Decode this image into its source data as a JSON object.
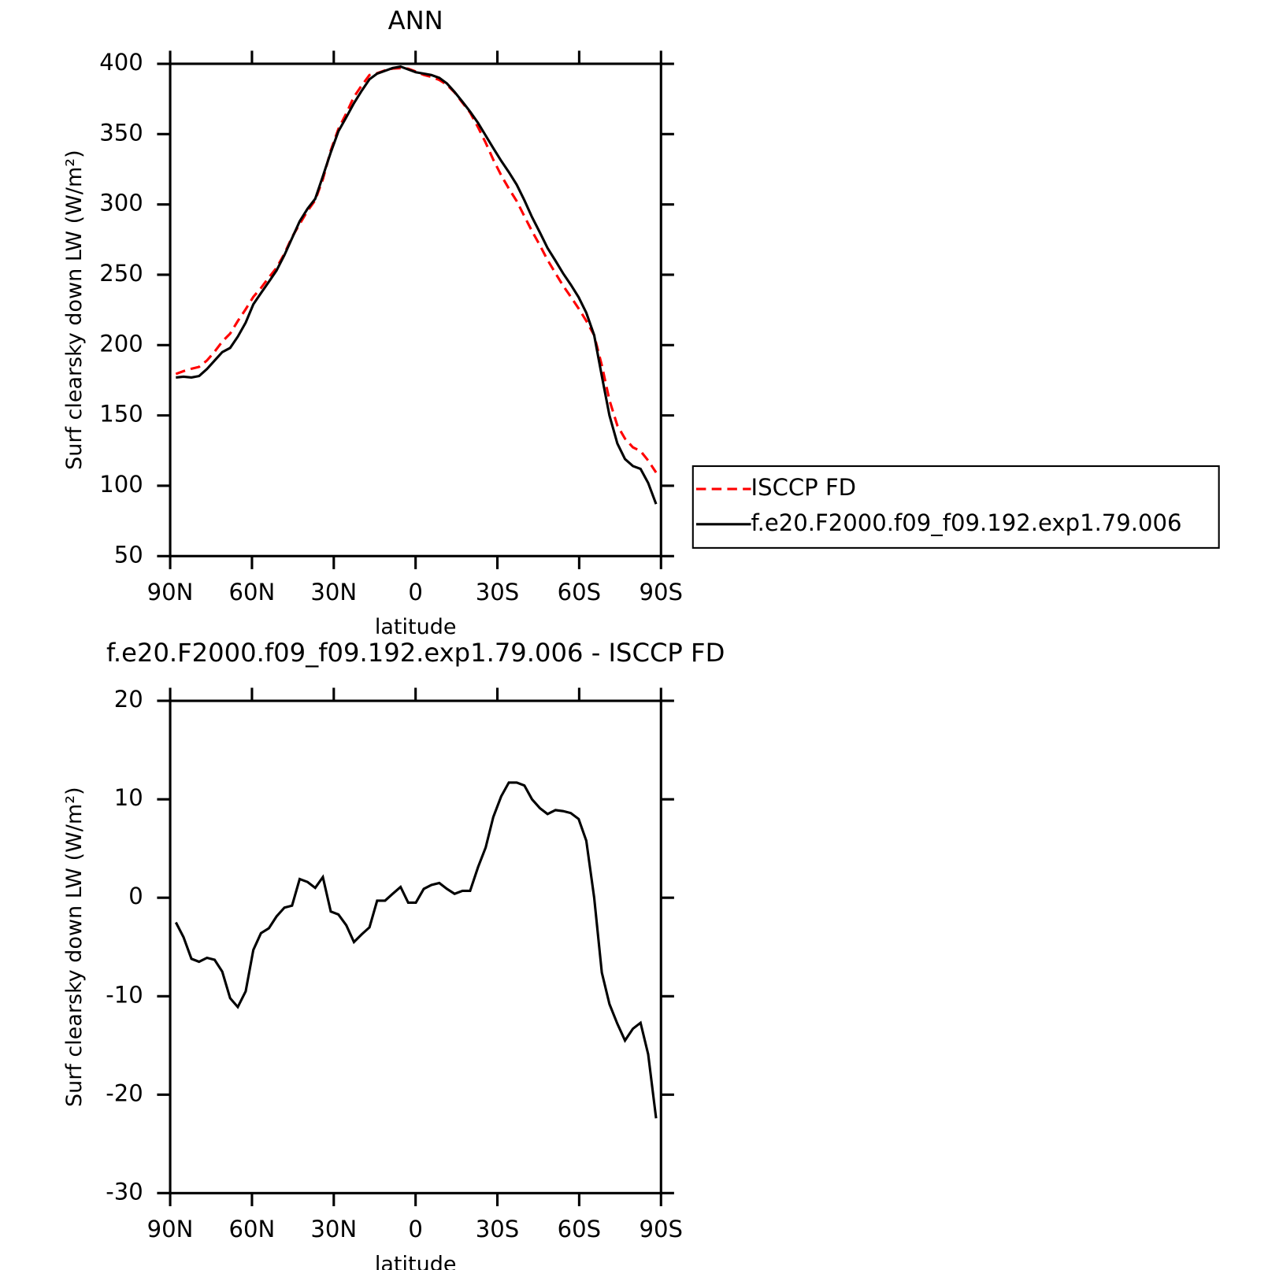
{
  "chart_data": [
    {
      "type": "line",
      "title": "ANN",
      "xlabel": "latitude",
      "ylabel": "Surf clearsky down LW (W/m²)",
      "x": [
        87.9,
        85.1,
        82.2,
        79.4,
        76.5,
        73.7,
        70.9,
        68.0,
        65.2,
        62.3,
        59.5,
        56.7,
        53.8,
        51.0,
        48.1,
        45.3,
        42.5,
        39.6,
        36.8,
        34.0,
        31.1,
        28.3,
        25.4,
        22.6,
        19.7,
        16.9,
        14.1,
        11.2,
        8.4,
        5.5,
        2.7,
        -0.1,
        -3.0,
        -5.8,
        -8.7,
        -11.5,
        -14.3,
        -17.2,
        -20.0,
        -22.9,
        -25.7,
        -28.5,
        -31.4,
        -34.2,
        -37.1,
        -39.9,
        -42.7,
        -45.6,
        -48.4,
        -51.3,
        -54.1,
        -56.9,
        -59.8,
        -62.6,
        -65.5,
        -68.3,
        -71.1,
        -74.0,
        -76.8,
        -79.7,
        -82.5,
        -85.3,
        -88.2
      ],
      "series": [
        {
          "name": "ISCCP FD",
          "color": "#ff0000",
          "line_style": "dashed",
          "values": [
            179.5,
            181.5,
            183.2,
            184.5,
            189.1,
            195.3,
            202.5,
            208.2,
            217.1,
            225.5,
            234.3,
            240.6,
            248.1,
            254.9,
            265,
            276.8,
            286.1,
            295.4,
            303,
            317.9,
            338.4,
            353.7,
            364.8,
            376.5,
            384.7,
            392,
            393.3,
            395.3,
            396.6,
            396.9,
            396.5,
            394.5,
            392.1,
            390.7,
            388.5,
            385.1,
            379.6,
            372.3,
            365.3,
            354.9,
            343.9,
            331.8,
            320.7,
            311.3,
            302.3,
            291.6,
            281,
            270.9,
            260.5,
            251.1,
            242.2,
            234.4,
            226,
            217.2,
            207,
            185.6,
            160.8,
            142.8,
            133.5,
            127.3,
            124.7,
            117.9,
            109.4
          ]
        },
        {
          "name": "f.e20.F2000.f09_f09.192.exp1.79.006",
          "color": "#000000",
          "line_style": "solid",
          "values": [
            177,
            177.5,
            177,
            178,
            183,
            189,
            195,
            198,
            206,
            216,
            229,
            237,
            245,
            253,
            264,
            276,
            288,
            297,
            304,
            320,
            337,
            352,
            362,
            372,
            381,
            389,
            393,
            395,
            397,
            398,
            396,
            394,
            393,
            392,
            390,
            386,
            380,
            373,
            366,
            358,
            349,
            340,
            331,
            323,
            314,
            303,
            291,
            280,
            269,
            260,
            251,
            243,
            234,
            223,
            207,
            178,
            150,
            130,
            119,
            114,
            112,
            102,
            87
          ]
        }
      ],
      "xlim": [
        90,
        -90
      ],
      "xticks": [
        {
          "value": 90,
          "label": "90N"
        },
        {
          "value": 60,
          "label": "60N"
        },
        {
          "value": 30,
          "label": "30N"
        },
        0,
        {
          "value": -30,
          "label": "30S"
        },
        {
          "value": -60,
          "label": "60S"
        },
        {
          "value": -90,
          "label": "90S"
        }
      ],
      "ylim": [
        50,
        400
      ],
      "yticks": [
        50,
        100,
        150,
        200,
        250,
        300,
        350,
        400
      ],
      "legend": "right"
    },
    {
      "type": "line",
      "title": "f.e20.F2000.f09_f09.192.exp1.79.006 - ISCCP FD",
      "xlabel": "latitude",
      "ylabel": "Surf clearsky down LW (W/m²)",
      "x": [
        87.9,
        85.1,
        82.2,
        79.4,
        76.5,
        73.7,
        70.9,
        68.0,
        65.2,
        62.3,
        59.5,
        56.7,
        53.8,
        51.0,
        48.1,
        45.3,
        42.5,
        39.6,
        36.8,
        34.0,
        31.1,
        28.3,
        25.4,
        22.6,
        19.7,
        16.9,
        14.1,
        11.2,
        8.4,
        5.5,
        2.7,
        -0.1,
        -3.0,
        -5.8,
        -8.7,
        -11.5,
        -14.3,
        -17.2,
        -20.0,
        -22.9,
        -25.7,
        -28.5,
        -31.4,
        -34.2,
        -37.1,
        -39.9,
        -42.7,
        -45.6,
        -48.4,
        -51.3,
        -54.1,
        -56.9,
        -59.8,
        -62.6,
        -65.5,
        -68.3,
        -71.1,
        -74.0,
        -76.8,
        -79.7,
        -82.5,
        -85.3,
        -88.2
      ],
      "values": [
        -2.5,
        -4,
        -6.2,
        -6.5,
        -6.1,
        -6.3,
        -7.5,
        -10.2,
        -11.1,
        -9.5,
        -5.3,
        -3.6,
        -3.1,
        -1.9,
        -1.0,
        -0.8,
        1.9,
        1.6,
        1.0,
        2.1,
        -1.4,
        -1.7,
        -2.8,
        -4.5,
        -3.7,
        -3.0,
        -0.3,
        -0.3,
        0.4,
        1.1,
        -0.5,
        -0.5,
        0.9,
        1.3,
        1.5,
        0.9,
        0.4,
        0.7,
        0.7,
        3.1,
        5.1,
        8.2,
        10.3,
        11.7,
        11.7,
        11.4,
        10,
        9.1,
        8.5,
        8.9,
        8.8,
        8.6,
        8.0,
        5.8,
        0,
        -7.6,
        -10.8,
        -12.8,
        -14.5,
        -13.3,
        -12.7,
        -15.9,
        -22.4
      ],
      "color": "#000000",
      "xlim": [
        90,
        -90
      ],
      "xticks": [
        {
          "value": 90,
          "label": "90N"
        },
        {
          "value": 60,
          "label": "60N"
        },
        {
          "value": 30,
          "label": "30N"
        },
        0,
        {
          "value": -30,
          "label": "30S"
        },
        {
          "value": -60,
          "label": "60S"
        },
        {
          "value": -90,
          "label": "90S"
        }
      ],
      "ylim": [
        -30,
        20
      ],
      "yticks": [
        -30,
        -20,
        -10,
        0,
        10,
        20
      ]
    }
  ]
}
